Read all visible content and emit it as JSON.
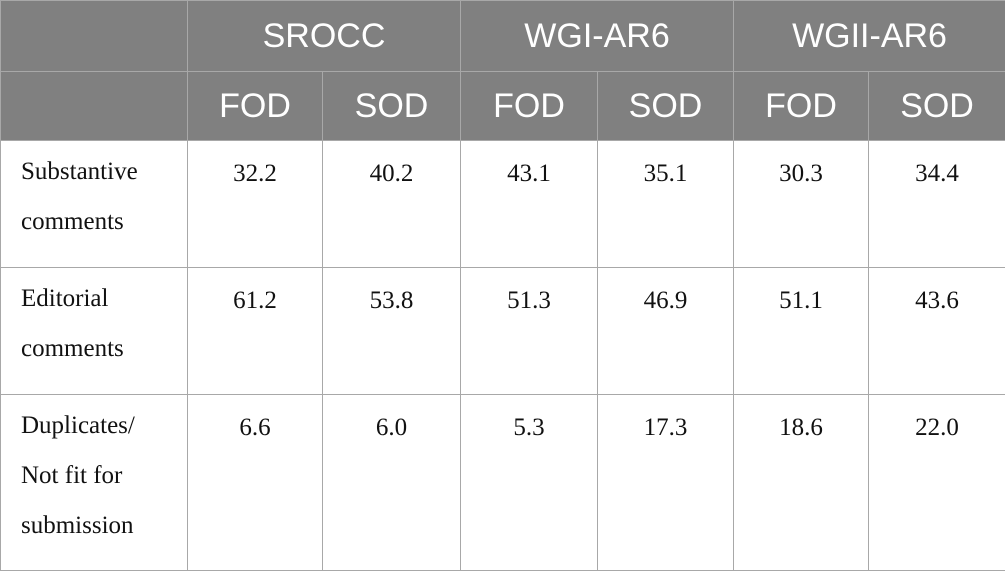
{
  "header": {
    "groups": [
      "SROCC",
      "WGI-AR6",
      "WGII-AR6"
    ],
    "subheaders": [
      "FOD",
      "SOD",
      "FOD",
      "SOD",
      "FOD",
      "SOD"
    ]
  },
  "rows": [
    {
      "label_lines": [
        "Substantive",
        "comments"
      ],
      "values": [
        "32.2",
        "40.2",
        "43.1",
        "35.1",
        "30.3",
        "34.4"
      ]
    },
    {
      "label_lines": [
        "Editorial",
        "comments"
      ],
      "values": [
        "61.2",
        "53.8",
        "51.3",
        "46.9",
        "51.1",
        "43.6"
      ]
    },
    {
      "label_lines": [
        "Duplicates/",
        "Not fit for",
        "submission"
      ],
      "values": [
        "6.6",
        "6.0",
        "5.3",
        "17.3",
        "18.6",
        "22.0"
      ]
    }
  ]
}
